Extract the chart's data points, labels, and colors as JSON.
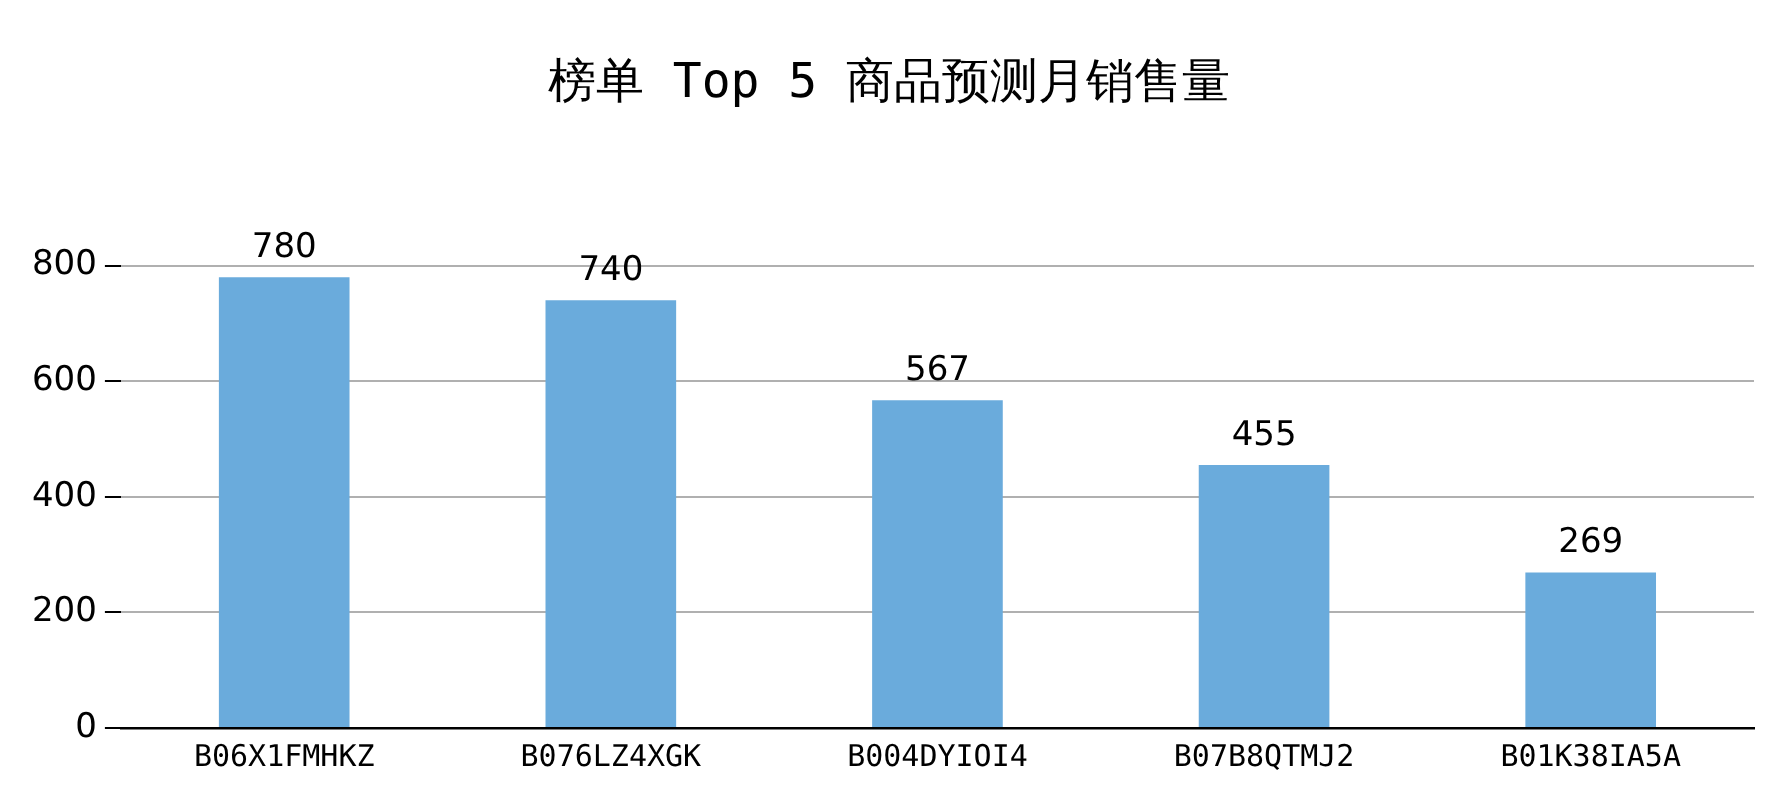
{
  "chart_data": {
    "type": "bar",
    "title": "榜单 Top 5 商品预测月销售量",
    "categories": [
      "B06X1FMHKZ",
      "B076LZ4XGK",
      "B004DYIOI4",
      "B07B8QTMJ2",
      "B01K38IA5A"
    ],
    "values": [
      780,
      740,
      567,
      455,
      269
    ],
    "color": "#6aabdc",
    "ylim": [
      0,
      800
    ],
    "yticks": [
      0,
      200,
      400,
      600,
      800
    ],
    "grid": "y",
    "data_labels": true,
    "legend": false
  }
}
